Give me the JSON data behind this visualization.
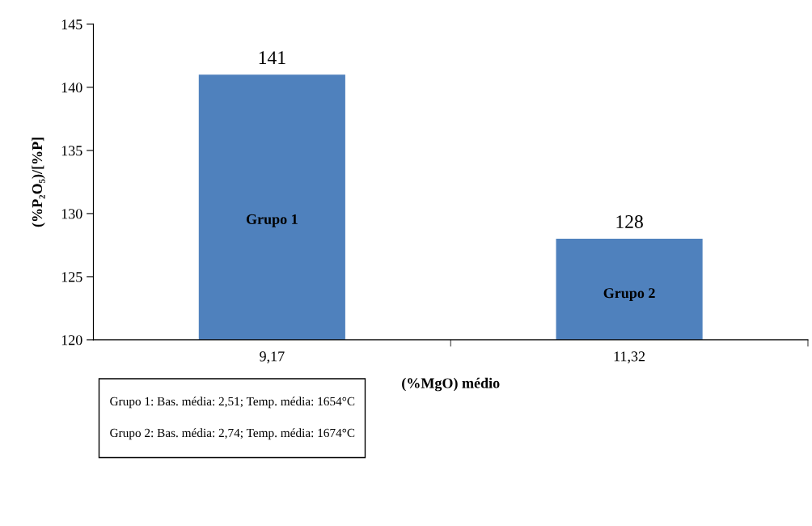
{
  "chart_data": {
    "type": "bar",
    "xlabel": "(%MgO) médio",
    "ylabel": "(%P₂O₅)/[%P]",
    "categories": [
      "9,17",
      "11,32"
    ],
    "values": [
      141,
      128
    ],
    "color": "#4f81bd",
    "data_labels": true,
    "ylim": [
      120,
      145
    ],
    "yticks": [
      120,
      125,
      130,
      135,
      140,
      145
    ],
    "grid": false,
    "legend": false,
    "annotations": [
      "Grupo 1",
      "Grupo 2",
      "Grupo 1: Bas. média: 2,51; Temp. média: 1654°C",
      "Grupo 2: Bas. média: 2,74; Temp. média: 1674°C"
    ]
  }
}
